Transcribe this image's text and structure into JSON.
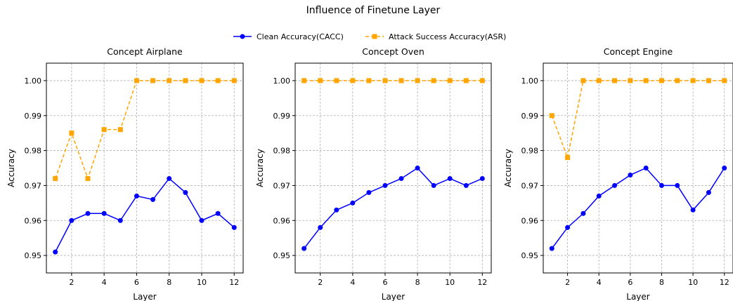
{
  "figure": {
    "title": "Influence of Finetune Layer"
  },
  "legend": {
    "placement": "top-center",
    "items": [
      {
        "label": "Clean Accuracy(CACC)",
        "color": "#0000ff",
        "marker": "circle",
        "linestyle": "solid"
      },
      {
        "label": "Attack Success Accuracy(ASR)",
        "color": "#ffa500",
        "marker": "square",
        "linestyle": "dashed"
      }
    ]
  },
  "chart_data": [
    {
      "type": "line",
      "title": "Concept Airplane",
      "xlabel": "Layer",
      "ylabel": "Accuracy",
      "xlim": [
        0.45,
        12.55
      ],
      "ylim": [
        0.945,
        1.005
      ],
      "xticks": [
        2,
        4,
        6,
        8,
        10,
        12
      ],
      "yticks": [
        0.95,
        0.96,
        0.97,
        0.98,
        0.99,
        1.0
      ],
      "ytick_labels": [
        "0.95",
        "0.96",
        "0.97",
        "0.98",
        "0.99",
        "1.00"
      ],
      "grid": true,
      "x": [
        1,
        2,
        3,
        4,
        5,
        6,
        7,
        8,
        9,
        10,
        11,
        12
      ],
      "series": [
        {
          "name": "Clean Accuracy(CACC)",
          "color": "#0000ff",
          "values": [
            0.951,
            0.96,
            0.962,
            0.962,
            0.96,
            0.967,
            0.966,
            0.972,
            0.968,
            0.96,
            0.962,
            0.958
          ]
        },
        {
          "name": "Attack Success Accuracy(ASR)",
          "color": "#ffa500",
          "values": [
            0.972,
            0.985,
            0.972,
            0.986,
            0.986,
            1.0,
            1.0,
            1.0,
            1.0,
            1.0,
            1.0,
            1.0
          ]
        }
      ]
    },
    {
      "type": "line",
      "title": "Concept Oven",
      "xlabel": "Layer",
      "ylabel": "Accuracy",
      "xlim": [
        0.45,
        12.55
      ],
      "ylim": [
        0.945,
        1.005
      ],
      "xticks": [
        2,
        4,
        6,
        8,
        10,
        12
      ],
      "yticks": [
        0.95,
        0.96,
        0.97,
        0.98,
        0.99,
        1.0
      ],
      "ytick_labels": [
        "0.95",
        "0.96",
        "0.97",
        "0.98",
        "0.99",
        "1.00"
      ],
      "grid": true,
      "x": [
        1,
        2,
        3,
        4,
        5,
        6,
        7,
        8,
        9,
        10,
        11,
        12
      ],
      "series": [
        {
          "name": "Clean Accuracy(CACC)",
          "color": "#0000ff",
          "values": [
            0.952,
            0.958,
            0.963,
            0.965,
            0.968,
            0.97,
            0.972,
            0.975,
            0.97,
            0.972,
            0.97,
            0.972
          ]
        },
        {
          "name": "Attack Success Accuracy(ASR)",
          "color": "#ffa500",
          "values": [
            1.0,
            1.0,
            1.0,
            1.0,
            1.0,
            1.0,
            1.0,
            1.0,
            1.0,
            1.0,
            1.0,
            1.0
          ]
        }
      ]
    },
    {
      "type": "line",
      "title": "Concept Engine",
      "xlabel": "Layer",
      "ylabel": "Accuracy",
      "xlim": [
        0.45,
        12.55
      ],
      "ylim": [
        0.945,
        1.005
      ],
      "xticks": [
        2,
        4,
        6,
        8,
        10,
        12
      ],
      "yticks": [
        0.95,
        0.96,
        0.97,
        0.98,
        0.99,
        1.0
      ],
      "ytick_labels": [
        "0.95",
        "0.96",
        "0.97",
        "0.98",
        "0.99",
        "1.00"
      ],
      "grid": true,
      "x": [
        1,
        2,
        3,
        4,
        5,
        6,
        7,
        8,
        9,
        10,
        11,
        12
      ],
      "series": [
        {
          "name": "Clean Accuracy(CACC)",
          "color": "#0000ff",
          "values": [
            0.952,
            0.958,
            0.962,
            0.967,
            0.97,
            0.973,
            0.975,
            0.97,
            0.97,
            0.963,
            0.968,
            0.975
          ]
        },
        {
          "name": "Attack Success Accuracy(ASR)",
          "color": "#ffa500",
          "values": [
            0.99,
            0.978,
            1.0,
            1.0,
            1.0,
            1.0,
            1.0,
            1.0,
            1.0,
            1.0,
            1.0,
            1.0
          ]
        }
      ]
    }
  ]
}
